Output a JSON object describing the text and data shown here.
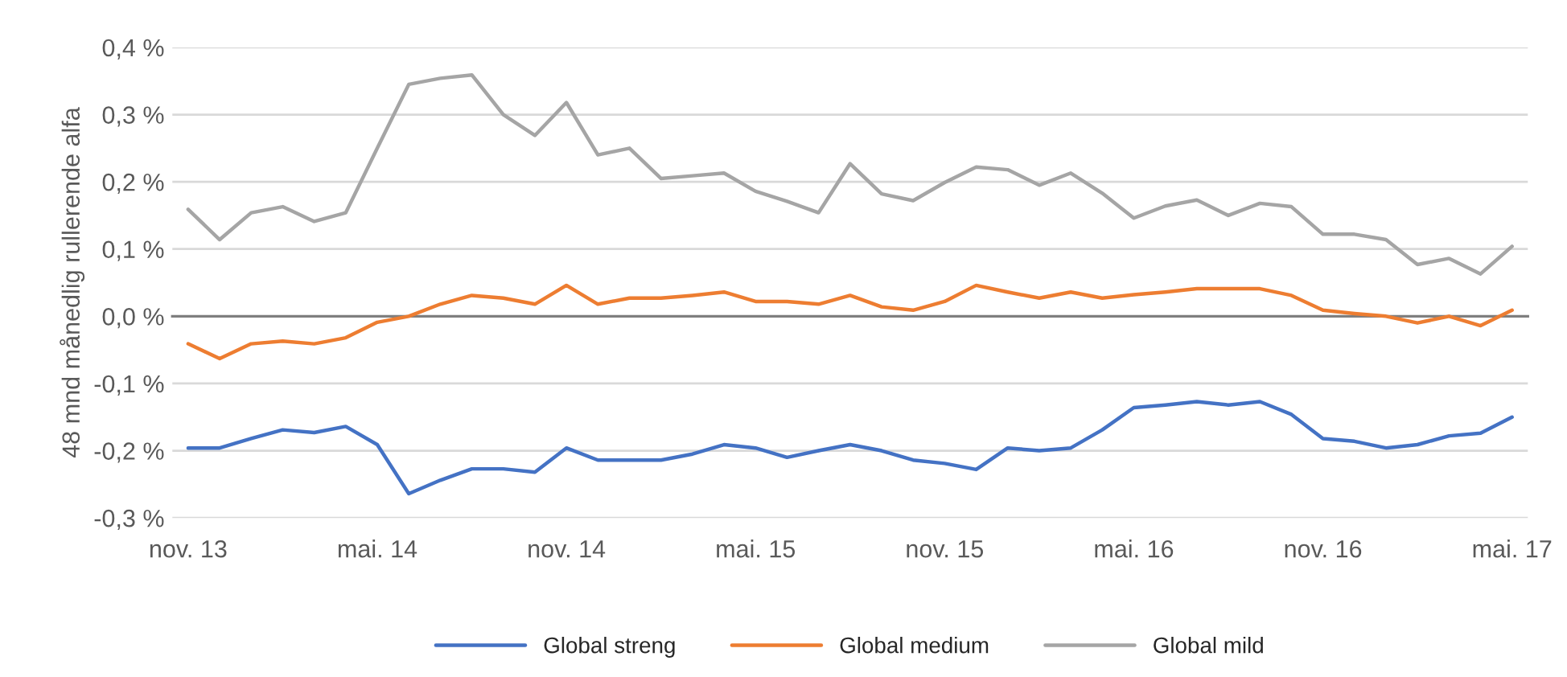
{
  "chart_data": {
    "type": "line",
    "ylabel": "48 mnd månedlig rullerende alfa",
    "categories": [
      "nov. 13",
      null,
      null,
      null,
      null,
      null,
      "mai. 14",
      null,
      null,
      null,
      null,
      null,
      "nov. 14",
      null,
      null,
      null,
      null,
      null,
      "mai. 15",
      null,
      null,
      null,
      null,
      null,
      "nov. 15",
      null,
      null,
      null,
      null,
      null,
      "mai. 16",
      null,
      null,
      null,
      null,
      null,
      "nov. 16",
      null,
      null,
      null,
      null,
      null,
      "mai. 17"
    ],
    "series": [
      {
        "name": "Global streng",
        "color": "#4472c4",
        "values": [
          -0.196,
          -0.196,
          -0.182,
          -0.169,
          -0.173,
          -0.164,
          -0.191,
          -0.264,
          -0.244,
          -0.227,
          -0.227,
          -0.232,
          -0.196,
          -0.214,
          -0.214,
          -0.214,
          -0.205,
          -0.191,
          -0.196,
          -0.21,
          -0.2,
          -0.191,
          -0.2,
          -0.214,
          -0.219,
          -0.228,
          -0.196,
          -0.2,
          -0.196,
          -0.169,
          -0.136,
          -0.132,
          -0.127,
          -0.132,
          -0.127,
          -0.146,
          -0.182,
          -0.186,
          -0.196,
          -0.191,
          -0.178,
          -0.174,
          -0.15
        ]
      },
      {
        "name": "Global medium",
        "color": "#ed7d31",
        "values": [
          -0.041,
          -0.063,
          -0.041,
          -0.037,
          -0.041,
          -0.032,
          -0.009,
          0.0,
          0.018,
          0.031,
          0.027,
          0.018,
          0.046,
          0.018,
          0.027,
          0.027,
          0.031,
          0.036,
          0.022,
          0.022,
          0.018,
          0.031,
          0.014,
          0.009,
          0.022,
          0.046,
          0.036,
          0.027,
          0.036,
          0.027,
          0.032,
          0.036,
          0.041,
          0.041,
          0.041,
          0.031,
          0.009,
          0.004,
          0.0,
          -0.01,
          0.0,
          -0.014,
          0.009
        ]
      },
      {
        "name": "Global mild",
        "color": "#a5a5a5",
        "values": [
          0.159,
          0.114,
          0.154,
          0.163,
          0.141,
          0.154,
          0.25,
          0.345,
          0.354,
          0.359,
          0.3,
          0.269,
          0.318,
          0.24,
          0.25,
          0.205,
          0.209,
          0.213,
          0.186,
          0.171,
          0.154,
          0.227,
          0.182,
          0.172,
          0.199,
          0.222,
          0.218,
          0.195,
          0.213,
          0.183,
          0.146,
          0.164,
          0.173,
          0.15,
          0.168,
          0.163,
          0.122,
          0.122,
          0.114,
          0.077,
          0.086,
          0.063,
          0.104
        ]
      }
    ],
    "ylim": [
      -0.3,
      0.4
    ],
    "yticks": [
      {
        "value": -0.3,
        "label": "-0,3 %"
      },
      {
        "value": -0.2,
        "label": "-0,2 %"
      },
      {
        "value": -0.1,
        "label": "-0,1 %"
      },
      {
        "value": 0.0,
        "label": "0,0 %"
      },
      {
        "value": 0.1,
        "label": "0,1 %"
      },
      {
        "value": 0.2,
        "label": "0,2 %"
      },
      {
        "value": 0.3,
        "label": "0,3 %"
      },
      {
        "value": 0.4,
        "label": "0,4 %"
      }
    ],
    "grid": "y",
    "legend": "bottom",
    "marker": "none",
    "line_style": "solid"
  }
}
